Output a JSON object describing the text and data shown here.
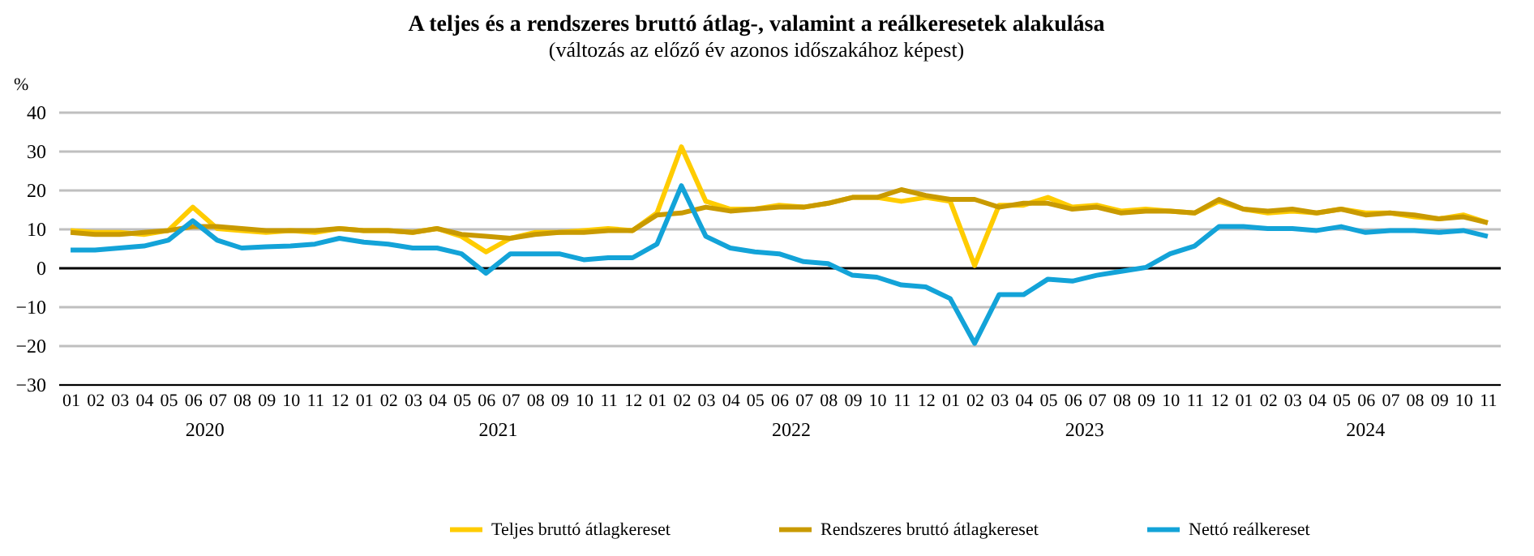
{
  "chart_data": {
    "type": "line",
    "title": "A teljes és a rendszeres bruttó átlag-, valamint a reálkeresetek alakulása",
    "subtitle": "(változás az előző év azonos időszakához képest)",
    "ylabel": "%",
    "categories": [
      "01",
      "02",
      "03",
      "04",
      "05",
      "06",
      "07",
      "08",
      "09",
      "10",
      "11",
      "12",
      "01",
      "02",
      "03",
      "04",
      "05",
      "06",
      "07",
      "08",
      "09",
      "10",
      "11",
      "12",
      "01",
      "02",
      "03",
      "04",
      "05",
      "06",
      "07",
      "08",
      "09",
      "10",
      "11",
      "12",
      "01",
      "02",
      "03",
      "04",
      "05",
      "06",
      "07",
      "08",
      "09",
      "10",
      "11",
      "12",
      "01",
      "02",
      "03",
      "04",
      "05",
      "06",
      "07",
      "08",
      "09",
      "10",
      "11"
    ],
    "annotations": [
      "2020",
      "2021",
      "2022",
      "2023",
      "2024"
    ],
    "series": [
      {
        "name": "Teljes bruttó átlagkereset",
        "color": "#ffcc00",
        "values": [
          9.5,
          9,
          9,
          8.5,
          9.5,
          15.5,
          10,
          9.5,
          9,
          9.5,
          9,
          10,
          9.5,
          9.5,
          9,
          10,
          8,
          4,
          7.5,
          9,
          9,
          9.5,
          10,
          9.5,
          14,
          31,
          17,
          15,
          15,
          16,
          15.5,
          16.5,
          18,
          18,
          17,
          18,
          17,
          0.5,
          16,
          16,
          18,
          15.5,
          16,
          14.5,
          15,
          14.5,
          14,
          17,
          15,
          14,
          14.5,
          14,
          15,
          14,
          14,
          13,
          12.5,
          13.5,
          11.5
        ]
      },
      {
        "name": "Rendszeres bruttó átlagkereset",
        "color": "#c99a00",
        "values": [
          9,
          8.5,
          8.5,
          9,
          9.5,
          10.5,
          10.5,
          10,
          9.5,
          9.5,
          9.5,
          10,
          9.5,
          9.5,
          9,
          10,
          8.5,
          8,
          7.5,
          8.5,
          9,
          9,
          9.5,
          9.5,
          13.5,
          14,
          15.5,
          14.5,
          15,
          15.5,
          15.5,
          16.5,
          18,
          18,
          20,
          18.5,
          17.5,
          17.5,
          15.5,
          16.5,
          16.5,
          15,
          15.5,
          14,
          14.5,
          14.5,
          14,
          17.5,
          15,
          14.5,
          15,
          14,
          15,
          13.5,
          14,
          13.5,
          12.5,
          13,
          11.5
        ]
      },
      {
        "name": "Nettó reálkereset",
        "color": "#13a3d8",
        "values": [
          4.5,
          4.5,
          5,
          5.5,
          7,
          12,
          7,
          5,
          5.3,
          5.5,
          6,
          7.5,
          6.5,
          6,
          5,
          5,
          3.5,
          -1.5,
          3.5,
          3.5,
          3.5,
          2,
          2.5,
          2.5,
          6,
          21,
          8,
          5,
          4,
          3.5,
          1.5,
          1,
          -2,
          -2.5,
          -4.5,
          -5,
          -8,
          -19.5,
          -7,
          -7,
          -3,
          -3.5,
          -2,
          -1,
          0,
          3.5,
          5.5,
          10.5,
          10.5,
          10,
          10,
          9.5,
          10.5,
          9,
          9.5,
          9.5,
          9,
          9.5,
          8
        ]
      }
    ],
    "ylim": [
      -30,
      40
    ],
    "yticks": [
      -30,
      -20,
      -10,
      0,
      10,
      20,
      30,
      40
    ],
    "grid": "y",
    "legend": "bottom",
    "marker": "none",
    "line_style": "solid"
  }
}
